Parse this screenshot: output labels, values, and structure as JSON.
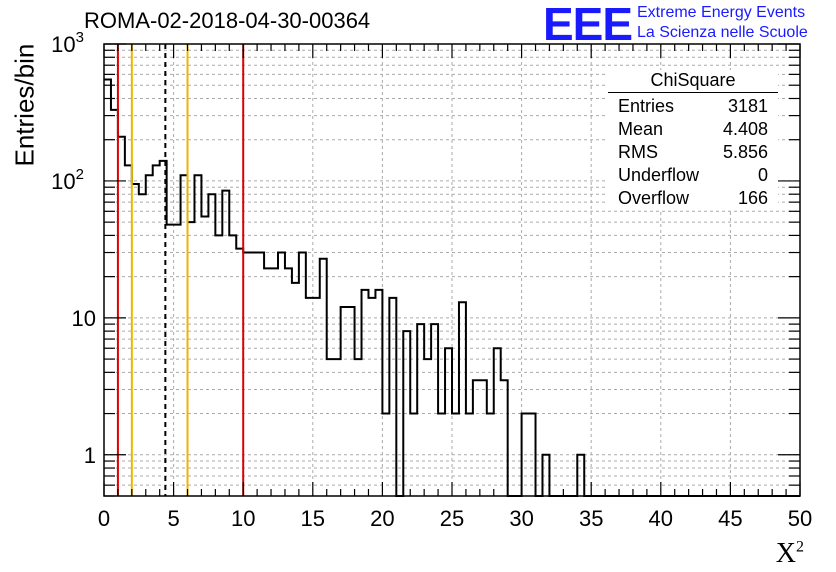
{
  "chart_data": {
    "type": "bar",
    "title": "ROMA-02-2018-04-30-00364",
    "xlabel": "X",
    "xlabel_sup": "2",
    "ylabel": "Entries/bin",
    "xlim": [
      0,
      50
    ],
    "ylim": [
      0.5,
      1000
    ],
    "yscale": "log",
    "grid": true,
    "bin_width": 0.5,
    "x_ticks": [
      "0",
      "5",
      "10",
      "15",
      "20",
      "25",
      "30",
      "35",
      "40",
      "45",
      "50"
    ],
    "y_ticks": [
      {
        "v": 1,
        "label": "1"
      },
      {
        "v": 10,
        "label": "10"
      },
      {
        "v": 100,
        "label": "10",
        "sup": "2"
      },
      {
        "v": 1000,
        "label": "10",
        "sup": "3"
      }
    ],
    "values": [
      550,
      330,
      210,
      130,
      95,
      80,
      110,
      130,
      140,
      48,
      48,
      110,
      50,
      110,
      55,
      80,
      40,
      85,
      40,
      32,
      30,
      30,
      30,
      23,
      23,
      30,
      23,
      18,
      30,
      14,
      14,
      27,
      5,
      5,
      12,
      12,
      5,
      16,
      14,
      16,
      2,
      14,
      0.3,
      8,
      2,
      9,
      5,
      9,
      2,
      6,
      2,
      13,
      2,
      3.5,
      3.5,
      2,
      6,
      3.5,
      0.3,
      0.3,
      2,
      2,
      0.3,
      1,
      0.3,
      0.3,
      0.3,
      0.3,
      1,
      0.3,
      0.3,
      0.3,
      0.3,
      0.3,
      0.3,
      0.3,
      0.3,
      0.3,
      0.3,
      0.3,
      0.3,
      0.3,
      0.3,
      0.3,
      0.3,
      0.3,
      0.3,
      0.3,
      0.3,
      0.3,
      0.3,
      0.3,
      0.3,
      0.3,
      0.3,
      0.3,
      0.3,
      0.3,
      0.3,
      0.3
    ],
    "vlines": [
      {
        "x": 1,
        "color": "#e00000",
        "dash": false
      },
      {
        "x": 2,
        "color": "#f0b400",
        "dash": false
      },
      {
        "x": 4.408,
        "color": "#000000",
        "dash": true
      },
      {
        "x": 6,
        "color": "#f0b400",
        "dash": false
      },
      {
        "x": 10,
        "color": "#e00000",
        "dash": false
      }
    ]
  },
  "stats_box": {
    "title": "ChiSquare",
    "rows": [
      {
        "label": "Entries",
        "value": "3181"
      },
      {
        "label": "Mean",
        "value": "4.408"
      },
      {
        "label": "RMS",
        "value": "5.856"
      },
      {
        "label": "Underflow",
        "value": "0"
      },
      {
        "label": "Overflow",
        "value": "166"
      }
    ]
  },
  "logo": {
    "text": "EEE",
    "line1": "Extreme Energy Events",
    "line2": "La Scienza nelle Scuole",
    "color": "#1a1aff"
  }
}
